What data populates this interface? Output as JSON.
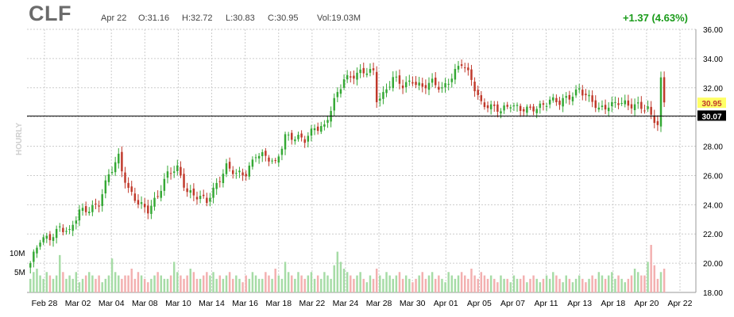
{
  "header": {
    "ticker": "CLF",
    "date": "Apr 22",
    "open": "O:31.16",
    "high": "H:32.72",
    "low": "L:30.83",
    "close": "C:30.95",
    "volume": "Vol:19.03M",
    "change": "+1.37 (4.63%)",
    "timeframe": "HOURLY"
  },
  "colors": {
    "up": "#34a834",
    "down": "#c0392b",
    "up_volume": "#a6dca6",
    "down_volume": "#f3b0b0",
    "grid": "#cccccc",
    "change": "#1a9b1a",
    "last_price_bg": "#ffff66",
    "ref_line_label_bg": "#000000"
  },
  "chart_data": {
    "type": "candlestick",
    "ylim": [
      18,
      36
    ],
    "y_ticks": [
      "36.00",
      "34.00",
      "32.00",
      "30.00",
      "28.00",
      "26.00",
      "24.00",
      "22.00",
      "20.00",
      "18.00"
    ],
    "y_tick_values": [
      36,
      34,
      32,
      30,
      28,
      26,
      24,
      22,
      20,
      18
    ],
    "volume_ticks": [
      "10M",
      "5M"
    ],
    "x_labels": [
      "Feb 28",
      "Mar 02",
      "Mar 04",
      "Mar 08",
      "Mar 10",
      "Mar 14",
      "Mar 16",
      "Mar 18",
      "Mar 22",
      "Mar 24",
      "Mar 28",
      "Mar 30",
      "Apr 01",
      "Apr 05",
      "Apr 07",
      "Apr 11",
      "Apr 13",
      "Apr 18",
      "Apr 20",
      "Apr 22"
    ],
    "last_price": "30.95",
    "last_price_value": 30.95,
    "reference_line": "30.07",
    "reference_line_value": 30.07,
    "grid": true,
    "close_path": [
      [
        0,
        20.0
      ],
      [
        3,
        21.5
      ],
      [
        6,
        21.8
      ],
      [
        9,
        22.5
      ],
      [
        12,
        22.0
      ],
      [
        15,
        23.6
      ],
      [
        18,
        23.8
      ],
      [
        21,
        24.0
      ],
      [
        24,
        26.0
      ],
      [
        27,
        27.4
      ],
      [
        28,
        26.5
      ],
      [
        30,
        25.0
      ],
      [
        33,
        24.0
      ],
      [
        36,
        23.7
      ],
      [
        39,
        24.7
      ],
      [
        42,
        26.0
      ],
      [
        45,
        26.5
      ],
      [
        48,
        25.0
      ],
      [
        51,
        24.5
      ],
      [
        54,
        24.2
      ],
      [
        57,
        25.5
      ],
      [
        60,
        26.6
      ],
      [
        63,
        26.0
      ],
      [
        66,
        26.2
      ],
      [
        69,
        27.5
      ],
      [
        72,
        27.2
      ],
      [
        75,
        26.8
      ],
      [
        78,
        28.8
      ],
      [
        81,
        28.5
      ],
      [
        84,
        28.4
      ],
      [
        87,
        29.4
      ],
      [
        90,
        29.3
      ],
      [
        93,
        31.0
      ],
      [
        96,
        32.7
      ],
      [
        99,
        32.9
      ],
      [
        102,
        33.0
      ],
      [
        105,
        33.1
      ],
      [
        106,
        31.3
      ],
      [
        108,
        31.6
      ],
      [
        111,
        32.6
      ],
      [
        114,
        32.1
      ],
      [
        117,
        32.6
      ],
      [
        120,
        32.0
      ],
      [
        123,
        32.3
      ],
      [
        126,
        32.0
      ],
      [
        129,
        32.8
      ],
      [
        132,
        33.6
      ],
      [
        135,
        32.6
      ],
      [
        138,
        31.0
      ],
      [
        141,
        30.6
      ],
      [
        144,
        30.4
      ],
      [
        147,
        31.0
      ],
      [
        150,
        30.5
      ],
      [
        153,
        30.4
      ],
      [
        156,
        30.8
      ],
      [
        159,
        31.2
      ],
      [
        162,
        30.9
      ],
      [
        165,
        31.4
      ],
      [
        168,
        32.0
      ],
      [
        171,
        31.2
      ],
      [
        174,
        30.5
      ],
      [
        177,
        30.9
      ],
      [
        180,
        31.0
      ],
      [
        183,
        30.7
      ],
      [
        186,
        30.9
      ],
      [
        189,
        30.6
      ],
      [
        190,
        30.0
      ],
      [
        192,
        29.4
      ],
      [
        193,
        32.4
      ],
      [
        194,
        30.95
      ]
    ],
    "volumes": [
      4,
      6,
      7,
      5,
      4,
      6,
      5,
      4,
      5,
      11,
      6,
      4,
      5,
      4,
      6,
      3,
      4,
      5,
      6,
      5,
      4,
      5,
      3,
      4,
      5,
      10,
      6,
      5,
      4,
      5,
      5,
      7,
      4,
      6,
      5,
      4,
      3,
      4,
      5,
      6,
      5,
      4,
      4,
      5,
      9,
      6,
      5,
      4,
      5,
      7,
      6,
      4,
      4,
      5,
      6,
      5,
      6,
      4,
      5,
      4,
      5,
      6,
      4,
      5,
      4,
      3,
      5,
      4,
      6,
      5,
      4,
      4,
      6,
      5,
      4,
      7,
      5,
      4,
      9,
      6,
      5,
      4,
      6,
      5,
      4,
      5,
      6,
      4,
      5,
      4,
      6,
      5,
      4,
      8,
      12,
      9,
      7,
      6,
      5,
      4,
      5,
      6,
      4,
      3,
      5,
      4,
      7,
      5,
      4,
      6,
      5,
      4,
      5,
      6,
      4,
      5,
      4,
      3,
      4,
      5,
      6,
      4,
      5,
      6,
      4,
      5,
      4,
      3,
      6,
      5,
      4,
      5,
      6,
      5,
      4,
      7,
      5,
      4,
      6,
      5,
      4,
      5,
      4,
      3,
      5,
      4,
      4,
      3,
      5,
      4,
      4,
      5,
      3,
      4,
      5,
      4,
      3,
      4,
      5,
      4,
      6,
      5,
      4,
      3,
      5,
      4,
      3,
      4,
      5,
      4,
      3,
      4,
      5,
      4,
      6,
      5,
      4,
      5,
      6,
      4,
      5,
      4,
      3,
      4,
      5,
      7,
      6,
      5,
      5,
      9,
      14,
      8
    ]
  }
}
